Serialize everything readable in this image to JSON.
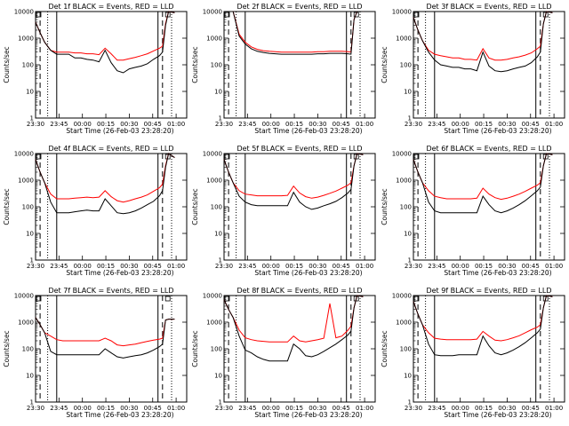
{
  "colors": {
    "events": "#000000",
    "lld": "#ff0000",
    "background": "#ffffff"
  },
  "chart_data": [
    {
      "type": "line",
      "title": "Det 1f BLACK = Events, RED = LLD",
      "xlabel": "Start Time (26-Feb-03 23:28:20)",
      "ylabel": "Counts/sec",
      "y_scale": "log",
      "ylim": [
        1,
        10000
      ],
      "x_ticks": [
        "23:30",
        "23:45",
        "00:00",
        "00:15",
        "00:30",
        "00:45",
        "01:00"
      ],
      "y_ticks": [
        "1",
        "10",
        "100",
        "1000",
        "10000"
      ],
      "series": [
        {
          "name": "Events",
          "color": "#000000"
        },
        {
          "name": "LLD",
          "color": "#ff0000"
        }
      ],
      "x": [
        0,
        3,
        6,
        10,
        14,
        18,
        22,
        26,
        30,
        34,
        38,
        42,
        46,
        50,
        54,
        58,
        62,
        66,
        70,
        74,
        78,
        82,
        84,
        86,
        88,
        92
      ],
      "events": [
        4000,
        1600,
        700,
        350,
        250,
        250,
        250,
        180,
        180,
        160,
        150,
        130,
        350,
        120,
        60,
        50,
        70,
        80,
        90,
        110,
        160,
        220,
        300,
        3000,
        10000,
        9000
      ],
      "lld": [
        4000,
        1600,
        700,
        350,
        300,
        300,
        300,
        280,
        280,
        260,
        260,
        240,
        420,
        260,
        150,
        150,
        170,
        190,
        220,
        260,
        330,
        420,
        500,
        3500,
        10000,
        9000
      ],
      "vlines": [
        {
          "x": 3,
          "style": "dashed"
        },
        {
          "x": 8,
          "style": "dotted"
        },
        {
          "x": 14,
          "style": "solid"
        },
        {
          "x": 81,
          "style": "solid"
        },
        {
          "x": 84,
          "style": "dashed"
        },
        {
          "x": 90,
          "style": "dotted"
        }
      ]
    },
    {
      "type": "line",
      "title": "Det 2f BLACK = Events, RED = LLD",
      "xlabel": "Start Time (26-Feb-03 23:28:20)",
      "ylabel": "Counts/sec",
      "y_scale": "log",
      "ylim": [
        1,
        10000
      ],
      "x_ticks": [
        "23:30",
        "23:45",
        "00:00",
        "00:15",
        "00:30",
        "00:45",
        "01:00"
      ],
      "y_ticks": [
        "1",
        "10",
        "100",
        "1000",
        "10000"
      ],
      "series": [
        {
          "name": "Events",
          "color": "#000000"
        },
        {
          "name": "LLD",
          "color": "#ff0000"
        }
      ],
      "x": [
        0,
        3,
        6,
        10,
        14,
        18,
        22,
        26,
        30,
        34,
        38,
        42,
        46,
        50,
        54,
        58,
        62,
        66,
        70,
        74,
        78,
        82,
        84,
        86,
        88,
        92
      ],
      "events": [
        10000,
        10000,
        10000,
        1200,
        600,
        400,
        320,
        290,
        270,
        260,
        250,
        250,
        250,
        250,
        250,
        250,
        260,
        260,
        270,
        270,
        270,
        260,
        250,
        5000,
        10000,
        10000
      ],
      "lld": [
        10000,
        10000,
        10000,
        1400,
        700,
        470,
        380,
        340,
        320,
        310,
        300,
        300,
        300,
        300,
        300,
        300,
        310,
        310,
        320,
        320,
        320,
        310,
        300,
        5000,
        10000,
        10000
      ],
      "vlines": [
        {
          "x": 3,
          "style": "dashed"
        },
        {
          "x": 8,
          "style": "dotted"
        },
        {
          "x": 14,
          "style": "solid"
        },
        {
          "x": 81,
          "style": "solid"
        },
        {
          "x": 84,
          "style": "dashed"
        },
        {
          "x": 90,
          "style": "dotted"
        }
      ]
    },
    {
      "type": "line",
      "title": "Det 3f BLACK = Events, RED = LLD",
      "xlabel": "Start Time (26-Feb-03 23:28:20)",
      "ylabel": "Counts/sec",
      "y_scale": "log",
      "ylim": [
        1,
        10000
      ],
      "x_ticks": [
        "23:30",
        "23:45",
        "00:00",
        "00:15",
        "00:30",
        "00:45",
        "01:00"
      ],
      "y_ticks": [
        "1",
        "10",
        "100",
        "1000",
        "10000"
      ],
      "series": [
        {
          "name": "Events",
          "color": "#000000"
        },
        {
          "name": "LLD",
          "color": "#ff0000"
        }
      ],
      "x": [
        0,
        3,
        6,
        10,
        14,
        18,
        22,
        26,
        30,
        34,
        38,
        42,
        46,
        50,
        54,
        58,
        62,
        66,
        70,
        74,
        78,
        82,
        84,
        86,
        88,
        92
      ],
      "events": [
        6000,
        2000,
        800,
        300,
        150,
        100,
        90,
        80,
        80,
        70,
        70,
        60,
        300,
        90,
        60,
        55,
        60,
        70,
        80,
        90,
        120,
        200,
        300,
        3500,
        10000,
        9000
      ],
      "lld": [
        6000,
        2000,
        800,
        350,
        250,
        220,
        200,
        180,
        180,
        160,
        160,
        150,
        400,
        180,
        150,
        150,
        160,
        180,
        200,
        230,
        280,
        400,
        500,
        3500,
        10000,
        9000
      ],
      "vlines": [
        {
          "x": 3,
          "style": "dashed"
        },
        {
          "x": 8,
          "style": "dotted"
        },
        {
          "x": 14,
          "style": "solid"
        },
        {
          "x": 81,
          "style": "solid"
        },
        {
          "x": 84,
          "style": "dashed"
        },
        {
          "x": 90,
          "style": "dotted"
        }
      ]
    },
    {
      "type": "line",
      "title": "Det 4f BLACK = Events, RED = LLD",
      "xlabel": "Start Time (26-Feb-03 23:28:20)",
      "ylabel": "Counts/sec",
      "y_scale": "log",
      "ylim": [
        1,
        10000
      ],
      "x_ticks": [
        "23:30",
        "23:45",
        "00:00",
        "00:15",
        "00:30",
        "00:45",
        "01:00"
      ],
      "y_ticks": [
        "1",
        "10",
        "100",
        "1000",
        "10000"
      ],
      "series": [
        {
          "name": "Events",
          "color": "#000000"
        },
        {
          "name": "LLD",
          "color": "#ff0000"
        }
      ],
      "x": [
        0,
        3,
        6,
        10,
        14,
        18,
        22,
        26,
        30,
        34,
        38,
        42,
        46,
        50,
        54,
        58,
        62,
        66,
        70,
        74,
        78,
        82,
        84,
        86,
        88,
        92
      ],
      "events": [
        6000,
        2000,
        800,
        150,
        60,
        60,
        60,
        65,
        70,
        75,
        70,
        70,
        200,
        110,
        60,
        55,
        60,
        70,
        90,
        120,
        160,
        260,
        400,
        3000,
        10000,
        7000
      ],
      "lld": [
        6000,
        2000,
        800,
        300,
        200,
        200,
        200,
        210,
        220,
        230,
        220,
        230,
        400,
        240,
        170,
        150,
        170,
        200,
        230,
        280,
        380,
        520,
        700,
        3500,
        10000,
        7000
      ],
      "vlines": [
        {
          "x": 3,
          "style": "dashed"
        },
        {
          "x": 8,
          "style": "dotted"
        },
        {
          "x": 14,
          "style": "solid"
        },
        {
          "x": 81,
          "style": "solid"
        },
        {
          "x": 84,
          "style": "dashed"
        },
        {
          "x": 90,
          "style": "dotted"
        }
      ]
    },
    {
      "type": "line",
      "title": "Det 5f BLACK = Events, RED = LLD",
      "xlabel": "Start Time (26-Feb-03 23:28:20)",
      "ylabel": "Counts/sec",
      "y_scale": "log",
      "ylim": [
        1,
        10000
      ],
      "x_ticks": [
        "23:30",
        "23:45",
        "00:00",
        "00:15",
        "00:30",
        "00:45",
        "01:00"
      ],
      "y_ticks": [
        "1",
        "10",
        "100",
        "1000",
        "10000"
      ],
      "series": [
        {
          "name": "Events",
          "color": "#000000"
        },
        {
          "name": "LLD",
          "color": "#ff0000"
        }
      ],
      "x": [
        0,
        3,
        6,
        10,
        14,
        18,
        22,
        26,
        30,
        34,
        38,
        42,
        46,
        50,
        54,
        58,
        62,
        66,
        70,
        74,
        78,
        82,
        84,
        86,
        88,
        92
      ],
      "events": [
        6000,
        2000,
        800,
        250,
        150,
        120,
        110,
        110,
        110,
        110,
        110,
        110,
        350,
        150,
        100,
        80,
        90,
        110,
        130,
        160,
        220,
        330,
        450,
        3500,
        10000,
        9000
      ],
      "lld": [
        6000,
        2000,
        800,
        400,
        300,
        280,
        260,
        260,
        260,
        260,
        260,
        270,
        600,
        330,
        240,
        210,
        230,
        270,
        320,
        390,
        500,
        650,
        800,
        3500,
        10000,
        9000
      ],
      "vlines": [
        {
          "x": 3,
          "style": "dashed"
        },
        {
          "x": 8,
          "style": "dotted"
        },
        {
          "x": 14,
          "style": "solid"
        },
        {
          "x": 81,
          "style": "solid"
        },
        {
          "x": 84,
          "style": "dashed"
        },
        {
          "x": 90,
          "style": "dotted"
        }
      ]
    },
    {
      "type": "line",
      "title": "Det 6f BLACK = Events, RED = LLD",
      "xlabel": "Start Time (26-Feb-03 23:28:20)",
      "ylabel": "Counts/sec",
      "y_scale": "log",
      "ylim": [
        1,
        10000
      ],
      "x_ticks": [
        "23:30",
        "23:45",
        "00:00",
        "00:15",
        "00:30",
        "00:45",
        "01:00"
      ],
      "y_ticks": [
        "1",
        "10",
        "100",
        "1000",
        "10000"
      ],
      "series": [
        {
          "name": "Events",
          "color": "#000000"
        },
        {
          "name": "LLD",
          "color": "#ff0000"
        }
      ],
      "x": [
        0,
        3,
        6,
        10,
        14,
        18,
        22,
        26,
        30,
        34,
        38,
        42,
        46,
        50,
        54,
        58,
        62,
        66,
        70,
        74,
        78,
        82,
        84,
        86,
        88,
        92
      ],
      "events": [
        6000,
        2000,
        800,
        150,
        70,
        60,
        60,
        60,
        60,
        60,
        60,
        60,
        250,
        120,
        70,
        60,
        70,
        90,
        120,
        170,
        260,
        400,
        550,
        3500,
        10000,
        9000
      ],
      "lld": [
        6000,
        2000,
        800,
        400,
        250,
        220,
        200,
        200,
        200,
        200,
        200,
        210,
        500,
        300,
        220,
        190,
        210,
        250,
        300,
        380,
        500,
        650,
        800,
        3500,
        10000,
        9000
      ],
      "vlines": [
        {
          "x": 3,
          "style": "dashed"
        },
        {
          "x": 8,
          "style": "dotted"
        },
        {
          "x": 14,
          "style": "solid"
        },
        {
          "x": 81,
          "style": "solid"
        },
        {
          "x": 84,
          "style": "dashed"
        },
        {
          "x": 90,
          "style": "dotted"
        }
      ]
    },
    {
      "type": "line",
      "title": "Det 7f BLACK = Events, RED = LLD",
      "xlabel": "Start Time (26-Feb-03 23:28:20)",
      "ylabel": "Counts/sec",
      "y_scale": "log",
      "ylim": [
        1,
        10000
      ],
      "x_ticks": [
        "23:30",
        "23:45",
        "00:00",
        "00:15",
        "00:30",
        "00:45",
        "01:00"
      ],
      "y_ticks": [
        "1",
        "10",
        "100",
        "1000",
        "10000"
      ],
      "series": [
        {
          "name": "Events",
          "color": "#000000"
        },
        {
          "name": "LLD",
          "color": "#ff0000"
        }
      ],
      "x": [
        0,
        3,
        6,
        10,
        14,
        18,
        22,
        26,
        30,
        34,
        38,
        42,
        46,
        50,
        54,
        58,
        62,
        66,
        70,
        74,
        78,
        82,
        84,
        86,
        88,
        92
      ],
      "events": [
        1500,
        800,
        400,
        80,
        60,
        60,
        60,
        60,
        60,
        60,
        60,
        60,
        100,
        70,
        50,
        45,
        50,
        55,
        60,
        70,
        90,
        120,
        150,
        1200,
        1300,
        1300
      ],
      "lld": [
        1500,
        800,
        400,
        300,
        220,
        200,
        200,
        200,
        200,
        200,
        200,
        200,
        250,
        200,
        140,
        130,
        140,
        150,
        170,
        190,
        210,
        230,
        250,
        1200,
        1300,
        1300
      ],
      "vlines": [
        {
          "x": 3,
          "style": "dashed"
        },
        {
          "x": 8,
          "style": "dotted"
        },
        {
          "x": 14,
          "style": "solid"
        },
        {
          "x": 81,
          "style": "solid"
        },
        {
          "x": 84,
          "style": "dashed"
        },
        {
          "x": 90,
          "style": "dotted"
        }
      ]
    },
    {
      "type": "line",
      "title": "Det 8f BLACK = Events, RED = LLD",
      "xlabel": "Start Time (26-Feb-03 23:28:20)",
      "ylabel": "Counts/sec",
      "y_scale": "log",
      "ylim": [
        1,
        10000
      ],
      "x_ticks": [
        "23:30",
        "23:45",
        "00:00",
        "00:15",
        "00:30",
        "00:45",
        "01:00"
      ],
      "y_ticks": [
        "1",
        "10",
        "100",
        "1000",
        "10000"
      ],
      "series": [
        {
          "name": "Events",
          "color": "#000000"
        },
        {
          "name": "LLD",
          "color": "#ff0000"
        }
      ],
      "x": [
        0,
        3,
        6,
        10,
        14,
        18,
        22,
        26,
        30,
        34,
        38,
        42,
        46,
        50,
        54,
        58,
        62,
        66,
        70,
        74,
        78,
        82,
        84,
        86,
        88,
        92
      ],
      "events": [
        7000,
        3000,
        1500,
        300,
        90,
        70,
        50,
        40,
        35,
        35,
        35,
        35,
        150,
        100,
        55,
        50,
        60,
        80,
        110,
        150,
        220,
        330,
        460,
        3500,
        10000,
        9000
      ],
      "lld": [
        7000,
        3000,
        1500,
        500,
        260,
        220,
        200,
        190,
        180,
        180,
        180,
        180,
        300,
        200,
        180,
        200,
        220,
        250,
        5000,
        260,
        300,
        500,
        700,
        3500,
        10000,
        9000
      ],
      "vlines": [
        {
          "x": 3,
          "style": "dashed"
        },
        {
          "x": 8,
          "style": "dotted"
        },
        {
          "x": 14,
          "style": "solid"
        },
        {
          "x": 81,
          "style": "solid"
        },
        {
          "x": 84,
          "style": "dashed"
        },
        {
          "x": 90,
          "style": "dotted"
        }
      ]
    },
    {
      "type": "line",
      "title": "Det 9f BLACK = Events, RED = LLD",
      "xlabel": "Start Time (26-Feb-03 23:28:20)",
      "ylabel": "Counts/sec",
      "y_scale": "log",
      "ylim": [
        1,
        10000
      ],
      "x_ticks": [
        "23:30",
        "23:45",
        "00:00",
        "00:15",
        "00:30",
        "00:45",
        "01:00"
      ],
      "y_ticks": [
        "1",
        "10",
        "100",
        "1000",
        "10000"
      ],
      "series": [
        {
          "name": "Events",
          "color": "#000000"
        },
        {
          "name": "LLD",
          "color": "#ff0000"
        }
      ],
      "x": [
        0,
        3,
        6,
        10,
        14,
        18,
        22,
        26,
        30,
        34,
        38,
        42,
        46,
        50,
        54,
        58,
        62,
        66,
        70,
        74,
        78,
        82,
        84,
        86,
        88,
        92
      ],
      "events": [
        6000,
        2000,
        800,
        150,
        60,
        55,
        55,
        55,
        60,
        60,
        60,
        60,
        300,
        130,
        70,
        60,
        70,
        90,
        120,
        170,
        260,
        400,
        550,
        3500,
        10000,
        9000
      ],
      "lld": [
        6000,
        2000,
        800,
        400,
        250,
        230,
        220,
        220,
        220,
        220,
        220,
        230,
        450,
        300,
        210,
        200,
        220,
        260,
        310,
        400,
        520,
        650,
        800,
        3500,
        10000,
        9000
      ],
      "vlines": [
        {
          "x": 3,
          "style": "dashed"
        },
        {
          "x": 8,
          "style": "dotted"
        },
        {
          "x": 14,
          "style": "solid"
        },
        {
          "x": 81,
          "style": "solid"
        },
        {
          "x": 84,
          "style": "dashed"
        },
        {
          "x": 90,
          "style": "dotted"
        }
      ]
    }
  ]
}
